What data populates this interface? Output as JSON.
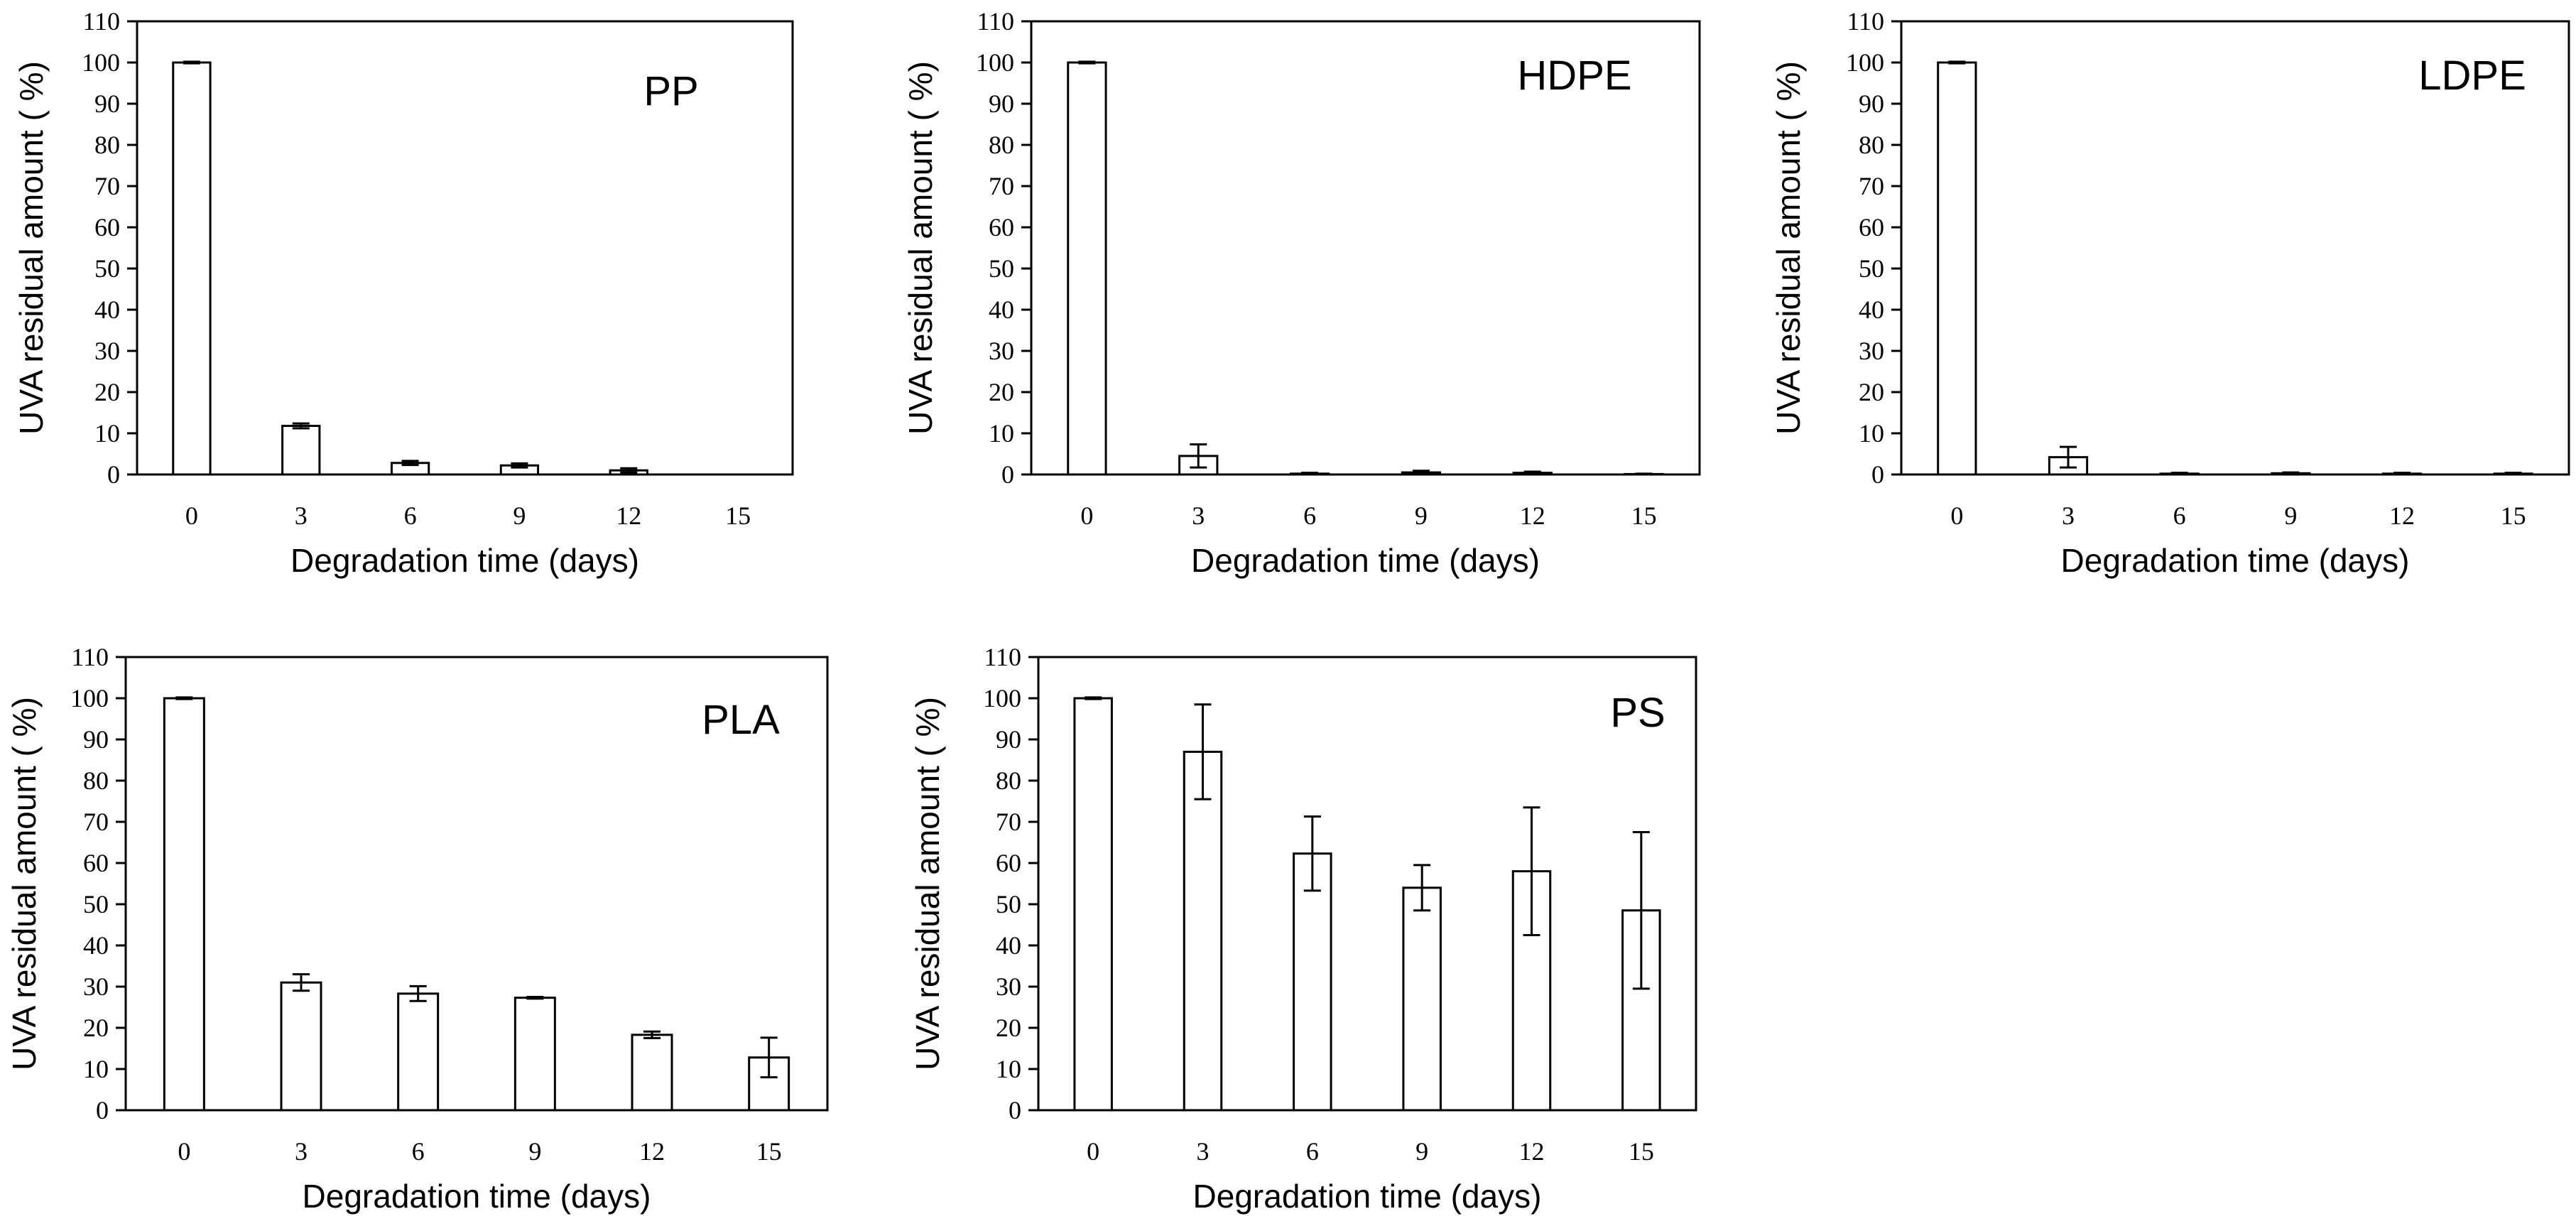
{
  "chart_data": [
    {
      "type": "bar",
      "panel": "PP",
      "categories": [
        "0",
        "3",
        "6",
        "9",
        "12",
        "15"
      ],
      "values": [
        100,
        11.8,
        2.8,
        2.2,
        1.0,
        0
      ],
      "errors": [
        0.2,
        0.6,
        0.5,
        0.5,
        0.5,
        0
      ],
      "xlabel": "Degradation time (days)",
      "ylabel": "UVA residual amount ( %)",
      "ylim": [
        0,
        110
      ],
      "yticks": [
        0,
        10,
        20,
        30,
        40,
        50,
        60,
        70,
        80,
        90,
        100,
        110
      ]
    },
    {
      "type": "bar",
      "panel": "HDPE",
      "categories": [
        "0",
        "3",
        "6",
        "9",
        "12",
        "15"
      ],
      "values": [
        100,
        4.5,
        0.2,
        0.5,
        0.4,
        0.1
      ],
      "errors": [
        0.2,
        2.8,
        0.2,
        0.4,
        0.3,
        0.1
      ],
      "xlabel": "Degradation time (days)",
      "ylabel": "UVA residual amount ( %)",
      "ylim": [
        0,
        110
      ],
      "yticks": [
        0,
        10,
        20,
        30,
        40,
        50,
        60,
        70,
        80,
        90,
        100,
        110
      ]
    },
    {
      "type": "bar",
      "panel": "LDPE",
      "categories": [
        "0",
        "3",
        "6",
        "9",
        "12",
        "15"
      ],
      "values": [
        100,
        4.2,
        0.2,
        0.3,
        0.2,
        0.2
      ],
      "errors": [
        0.2,
        2.5,
        0.2,
        0.2,
        0.2,
        0.2
      ],
      "xlabel": "Degradation time (days)",
      "ylabel": "UVA residual amount ( %)",
      "ylim": [
        0,
        110
      ],
      "yticks": [
        0,
        10,
        20,
        30,
        40,
        50,
        60,
        70,
        80,
        90,
        100,
        110
      ]
    },
    {
      "type": "bar",
      "panel": "PLA",
      "categories": [
        "0",
        "3",
        "6",
        "9",
        "12",
        "15"
      ],
      "values": [
        100,
        31,
        28.3,
        27.3,
        18.3,
        12.8
      ],
      "errors": [
        0.2,
        2.0,
        1.8,
        0.2,
        0.8,
        4.8
      ],
      "xlabel": "Degradation time (days)",
      "ylabel": "UVA residual amount ( %)",
      "ylim": [
        0,
        110
      ],
      "yticks": [
        0,
        10,
        20,
        30,
        40,
        50,
        60,
        70,
        80,
        90,
        100,
        110
      ]
    },
    {
      "type": "bar",
      "panel": "PS",
      "categories": [
        "0",
        "3",
        "6",
        "9",
        "12",
        "15"
      ],
      "values": [
        100,
        87,
        62.3,
        54,
        58,
        48.5
      ],
      "errors": [
        0.2,
        11.5,
        9.0,
        5.5,
        15.5,
        19.0
      ],
      "xlabel": "Degradation time (days)",
      "ylabel": "UVA residual amount ( %)",
      "ylim": [
        0,
        110
      ],
      "yticks": [
        0,
        10,
        20,
        30,
        40,
        50,
        60,
        70,
        80,
        90,
        100,
        110
      ]
    }
  ]
}
